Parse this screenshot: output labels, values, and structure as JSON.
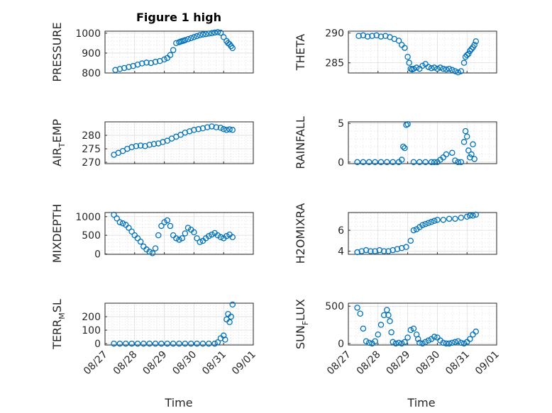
{
  "figure_title": "Figure 1 high",
  "xlabel": "Time",
  "x_ticks": [
    "08/27",
    "08/28",
    "08/29",
    "08/30",
    "08/31",
    "09/01"
  ],
  "marker_color": "#0072BD",
  "chart_data": [
    {
      "type": "scatter",
      "title": "Figure 1 high",
      "ylabel": "PRESSURE",
      "ylim": [
        800,
        1010
      ],
      "yticks": [
        800,
        900,
        1000
      ],
      "grid": true,
      "xlim": [
        "08/27",
        "09/01"
      ],
      "x": [
        0.35,
        0.5,
        0.65,
        0.8,
        0.95,
        1.1,
        1.25,
        1.4,
        1.55,
        1.7,
        1.85,
        2.0,
        2.1,
        2.2,
        2.3,
        2.4,
        2.5,
        2.55,
        2.6,
        2.65,
        2.7,
        2.8,
        2.9,
        3.0,
        3.1,
        3.2,
        3.3,
        3.4,
        3.5,
        3.6,
        3.7,
        3.8,
        3.9,
        4.0,
        4.1,
        4.15,
        4.2,
        4.25,
        4.3
      ],
      "y": [
        815,
        820,
        825,
        830,
        835,
        842,
        848,
        852,
        850,
        856,
        860,
        868,
        875,
        890,
        915,
        950,
        955,
        958,
        960,
        962,
        965,
        970,
        975,
        980,
        985,
        990,
        993,
        995,
        998,
        1000,
        1003,
        1005,
        1002,
        980,
        960,
        950,
        945,
        935,
        925
      ]
    },
    {
      "type": "scatter",
      "ylabel": "THETA",
      "ylim": [
        283.3,
        290.3
      ],
      "yticks": [
        285,
        290
      ],
      "grid": true,
      "x": [
        0.35,
        0.5,
        0.65,
        0.8,
        0.95,
        1.1,
        1.25,
        1.4,
        1.55,
        1.7,
        1.8,
        1.9,
        2.0,
        2.05,
        2.1,
        2.15,
        2.2,
        2.3,
        2.4,
        2.5,
        2.6,
        2.7,
        2.8,
        2.9,
        3.0,
        3.1,
        3.2,
        3.3,
        3.4,
        3.5,
        3.6,
        3.7,
        3.8,
        3.9,
        3.95,
        4.0,
        4.05,
        4.1,
        4.15,
        4.2,
        4.25,
        4.3
      ],
      "y": [
        289.5,
        289.6,
        289.4,
        289.5,
        289.6,
        289.4,
        289.5,
        289.3,
        289.0,
        288.7,
        288.0,
        287.5,
        286.0,
        285.0,
        284.0,
        283.9,
        284.0,
        284.2,
        284.0,
        284.5,
        284.8,
        284.3,
        284.1,
        284.2,
        284.0,
        284.2,
        284.0,
        283.9,
        284.0,
        283.8,
        283.6,
        283.4,
        283.6,
        285.0,
        286.0,
        286.3,
        286.5,
        287.0,
        287.3,
        287.6,
        288.0,
        288.6
      ]
    },
    {
      "type": "scatter",
      "ylabel": "AIR_TEMP",
      "ylim": [
        269.5,
        285
      ],
      "yticks": [
        270,
        275,
        280
      ],
      "grid": true,
      "x": [
        0.3,
        0.45,
        0.6,
        0.75,
        0.9,
        1.05,
        1.2,
        1.35,
        1.5,
        1.65,
        1.8,
        1.95,
        2.1,
        2.25,
        2.4,
        2.55,
        2.7,
        2.85,
        3.0,
        3.15,
        3.3,
        3.45,
        3.6,
        3.75,
        3.9,
        4.0,
        4.1,
        4.2,
        4.3
      ],
      "y": [
        272.8,
        273.5,
        274.2,
        275.0,
        275.6,
        276.0,
        276.2,
        276.0,
        276.5,
        276.8,
        277.0,
        277.5,
        278.0,
        278.8,
        279.5,
        280.2,
        281.0,
        281.5,
        282.0,
        282.3,
        282.6,
        283.0,
        283.3,
        283.0,
        282.8,
        282.3,
        282.0,
        282.2,
        282.0
      ]
    },
    {
      "type": "scatter",
      "ylabel": "RAINFALL",
      "ylim": [
        -0.2,
        5.2
      ],
      "yticks": [
        0,
        5
      ],
      "grid": true,
      "x": [
        0.3,
        0.5,
        0.7,
        0.9,
        1.1,
        1.3,
        1.5,
        1.7,
        1.8,
        1.85,
        1.9,
        1.95,
        2.0,
        2.2,
        2.4,
        2.6,
        2.8,
        2.9,
        3.0,
        3.1,
        3.2,
        3.3,
        3.5,
        3.6,
        3.7,
        3.8,
        3.9,
        3.95,
        4.0,
        4.05,
        4.1,
        4.15,
        4.2,
        4.25
      ],
      "y": [
        0,
        0,
        0,
        0,
        0,
        0,
        0,
        0,
        0.3,
        2.0,
        1.8,
        4.8,
        4.9,
        0,
        0,
        0,
        0,
        0,
        0,
        0.3,
        0.6,
        1.0,
        1.2,
        0.2,
        0,
        0,
        2.6,
        4.0,
        3.3,
        1.5,
        0.6,
        1.0,
        2.3,
        0.4
      ]
    },
    {
      "type": "scatter",
      "ylabel": "MIXDEPTH",
      "ylim": [
        -10,
        1110
      ],
      "yticks": [
        0,
        500,
        1000
      ],
      "grid": true,
      "x": [
        0.3,
        0.4,
        0.5,
        0.6,
        0.7,
        0.8,
        0.9,
        1.0,
        1.1,
        1.2,
        1.3,
        1.4,
        1.5,
        1.6,
        1.7,
        1.8,
        1.9,
        2.0,
        2.1,
        2.2,
        2.3,
        2.4,
        2.5,
        2.6,
        2.7,
        2.8,
        2.9,
        3.0,
        3.1,
        3.2,
        3.3,
        3.4,
        3.5,
        3.6,
        3.7,
        3.8,
        3.9,
        4.0,
        4.1,
        4.2,
        4.3
      ],
      "y": [
        1050,
        950,
        850,
        820,
        780,
        700,
        600,
        500,
        420,
        330,
        200,
        120,
        60,
        20,
        150,
        500,
        750,
        850,
        900,
        750,
        500,
        420,
        380,
        420,
        550,
        700,
        650,
        580,
        420,
        320,
        350,
        420,
        480,
        520,
        560,
        500,
        450,
        420,
        480,
        520,
        450
      ]
    },
    {
      "type": "scatter",
      "ylabel": "H2OMIXRA",
      "ylim": [
        3.7,
        7.7
      ],
      "yticks": [
        4,
        6
      ],
      "grid": true,
      "x": [
        0.3,
        0.45,
        0.6,
        0.75,
        0.9,
        1.05,
        1.2,
        1.35,
        1.5,
        1.65,
        1.8,
        1.95,
        2.1,
        2.2,
        2.3,
        2.4,
        2.5,
        2.6,
        2.7,
        2.8,
        2.9,
        3.0,
        3.2,
        3.4,
        3.6,
        3.8,
        4.0,
        4.1,
        4.2,
        4.3
      ],
      "y": [
        3.9,
        4.0,
        4.1,
        4.0,
        4.0,
        4.1,
        4.0,
        4.0,
        4.1,
        4.2,
        4.3,
        4.4,
        5.0,
        6.0,
        6.1,
        6.3,
        6.5,
        6.6,
        6.7,
        6.8,
        6.9,
        7.0,
        7.0,
        7.1,
        7.1,
        7.2,
        7.3,
        7.4,
        7.4,
        7.5
      ]
    },
    {
      "type": "scatter",
      "ylabel": "TERR_MSL",
      "ylim": [
        -10,
        300
      ],
      "yticks": [
        0,
        100,
        200
      ],
      "grid": true,
      "x": [
        0.3,
        0.5,
        0.7,
        0.9,
        1.1,
        1.3,
        1.5,
        1.7,
        1.9,
        2.1,
        2.3,
        2.5,
        2.7,
        2.9,
        3.1,
        3.3,
        3.5,
        3.7,
        3.8,
        3.9,
        4.0,
        4.05,
        4.1,
        4.15,
        4.2,
        4.25,
        4.3
      ],
      "y": [
        0,
        0,
        0,
        0,
        0,
        0,
        0,
        0,
        0,
        0,
        0,
        0,
        0,
        0,
        0,
        0,
        0,
        0,
        10,
        40,
        60,
        30,
        180,
        220,
        160,
        200,
        290
      ]
    },
    {
      "type": "scatter",
      "ylabel": "SUN_FLUX",
      "ylim": [
        -20,
        540
      ],
      "yticks": [
        0,
        500
      ],
      "grid": true,
      "x": [
        0.3,
        0.4,
        0.5,
        0.6,
        0.7,
        0.8,
        0.9,
        1.0,
        1.1,
        1.2,
        1.3,
        1.35,
        1.4,
        1.45,
        1.5,
        1.6,
        1.7,
        1.8,
        1.9,
        2.0,
        2.1,
        2.2,
        2.3,
        2.35,
        2.4,
        2.5,
        2.6,
        2.7,
        2.8,
        2.9,
        3.0,
        3.1,
        3.2,
        3.3,
        3.4,
        3.5,
        3.6,
        3.7,
        3.8,
        3.9,
        4.0,
        4.1,
        4.2,
        4.3
      ],
      "y": [
        480,
        400,
        200,
        30,
        10,
        0,
        30,
        120,
        250,
        380,
        450,
        380,
        300,
        150,
        20,
        0,
        10,
        0,
        20,
        80,
        180,
        200,
        120,
        60,
        10,
        0,
        20,
        40,
        60,
        90,
        80,
        40,
        10,
        0,
        0,
        10,
        20,
        30,
        10,
        0,
        20,
        60,
        120,
        160
      ]
    }
  ]
}
